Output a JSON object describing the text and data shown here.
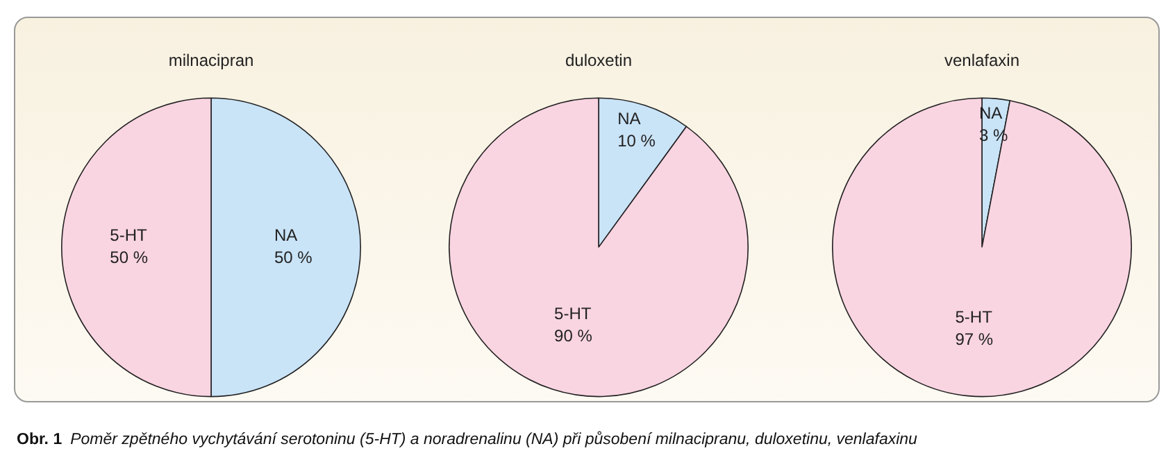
{
  "chart_data": [
    {
      "type": "pie",
      "title": "milnacipran",
      "categories": [
        "NA",
        "5-HT"
      ],
      "values": [
        50,
        50
      ],
      "value_labels": [
        "50 %",
        "50 %"
      ],
      "colors": [
        "#c9e3f7",
        "#f9d4e1"
      ],
      "legend": false,
      "annotations": [
        "Obr. 1  Poměr zpětného vychytávání serotoninu (5-HT) a noradrenalinu (NA) při působení milnacipranu, duloxetinu, venlafaxinu"
      ]
    },
    {
      "type": "pie",
      "title": "duloxetin",
      "categories": [
        "NA",
        "5-HT"
      ],
      "values": [
        10,
        90
      ],
      "value_labels": [
        "10 %",
        "90 %"
      ],
      "colors": [
        "#c9e3f7",
        "#f9d4e1"
      ],
      "legend": false
    },
    {
      "type": "pie",
      "title": "venlafaxin",
      "categories": [
        "NA",
        "5-HT"
      ],
      "values": [
        3,
        97
      ],
      "value_labels": [
        "3 %",
        "97 %"
      ],
      "colors": [
        "#c9e3f7",
        "#f9d4e1"
      ],
      "legend": false
    }
  ]
}
